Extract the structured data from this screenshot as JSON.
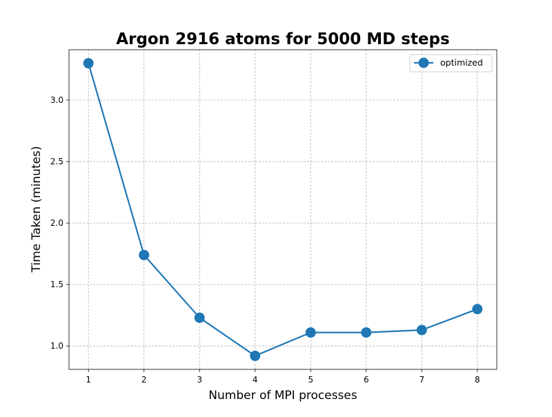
{
  "chart_data": {
    "type": "line",
    "title": "Argon 2916 atoms for 5000 MD steps",
    "xlabel": "Number of MPI processes",
    "ylabel": "Time Taken (minutes)",
    "x": [
      1,
      2,
      3,
      4,
      5,
      6,
      7,
      8
    ],
    "xticks": [
      "1",
      "2",
      "3",
      "4",
      "5",
      "6",
      "7",
      "8"
    ],
    "yticks": [
      "1.0",
      "1.5",
      "2.0",
      "2.5",
      "3.0"
    ],
    "xlim": [
      0.65,
      8.35
    ],
    "ylim": [
      0.81,
      3.41
    ],
    "grid": true,
    "legend_position": "top-right",
    "series": [
      {
        "name": "optimized",
        "color": "#1f77b4",
        "marker": "circle",
        "values": [
          3.3,
          1.74,
          1.23,
          0.92,
          1.11,
          1.11,
          1.13,
          1.3
        ]
      }
    ]
  }
}
